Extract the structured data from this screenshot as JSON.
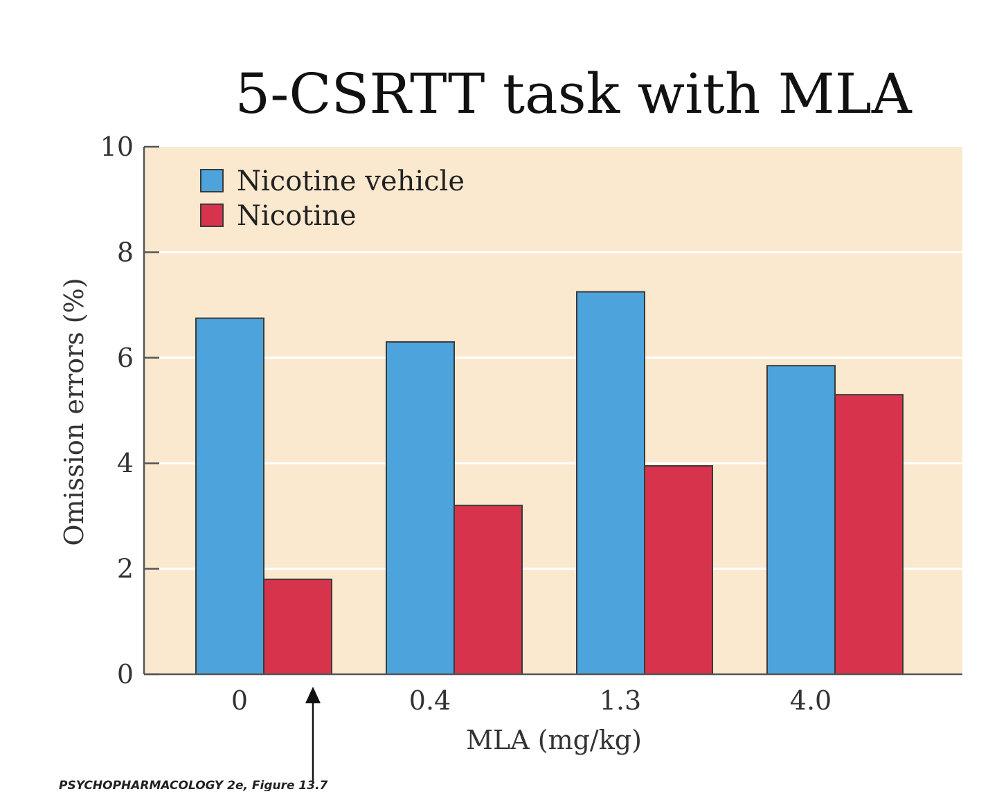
{
  "chart_data": {
    "type": "bar",
    "title": "5-CSRTT task with MLA",
    "xlabel": "MLA (mg/kg)",
    "ylabel": "Omission errors (%)",
    "categories": [
      "0",
      "0.4",
      "1.3",
      "4.0"
    ],
    "series": [
      {
        "name": "Nicotine vehicle",
        "color": "#4da3db",
        "values": [
          6.75,
          6.3,
          7.25,
          5.85
        ]
      },
      {
        "name": "Nicotine",
        "color": "#d8334d",
        "values": [
          1.8,
          3.2,
          3.95,
          5.3
        ]
      }
    ],
    "ylim": [
      0,
      10
    ],
    "yticks": [
      "0",
      "2",
      "4",
      "6",
      "8",
      "10"
    ],
    "grid": true,
    "legend_position": "top-left",
    "plot_background": "#fbe9cf",
    "annotation": "arrow pointing up at 0 mg/kg MLA"
  },
  "credit": "PSYCHOPHARMACOLOGY 2e, Figure 13.7"
}
